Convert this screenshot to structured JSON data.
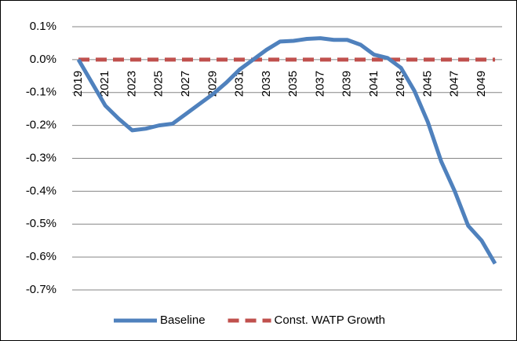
{
  "chart_data": {
    "type": "line",
    "categories": [
      "2019",
      null,
      "2021",
      null,
      "2023",
      null,
      "2025",
      null,
      "2027",
      null,
      "2029",
      null,
      "2031",
      null,
      "2033",
      null,
      "2035",
      null,
      "2037",
      null,
      "2039",
      null,
      "2041",
      null,
      "2043",
      null,
      "2045",
      null,
      "2047",
      null,
      "2049",
      null
    ],
    "series": [
      {
        "name": "Baseline",
        "color": "#4f81bd",
        "dash": false,
        "values": [
          0.0,
          -0.07,
          -0.14,
          -0.18,
          -0.215,
          -0.21,
          -0.2,
          -0.195,
          -0.165,
          -0.135,
          -0.105,
          -0.07,
          -0.03,
          0.0,
          0.03,
          0.055,
          0.057,
          0.063,
          0.065,
          0.06,
          0.06,
          0.045,
          0.015,
          0.005,
          -0.025,
          -0.095,
          -0.19,
          -0.31,
          -0.4,
          -0.505,
          -0.55,
          -0.62
        ]
      },
      {
        "name": "Const. WATP Growth",
        "color": "#c0504d",
        "dash": true,
        "values": [
          0,
          0,
          0,
          0,
          0,
          0,
          0,
          0,
          0,
          0,
          0,
          0,
          0,
          0,
          0,
          0,
          0,
          0,
          0,
          0,
          0,
          0,
          0,
          0,
          0,
          0,
          0,
          0,
          0,
          0,
          0,
          0
        ]
      }
    ],
    "ylim": [
      -0.7,
      0.1
    ],
    "yticks": [
      {
        "value": 0.1,
        "label": "0.1%"
      },
      {
        "value": 0.0,
        "label": "0.0%"
      },
      {
        "value": -0.1,
        "label": "-0.1%"
      },
      {
        "value": -0.2,
        "label": "-0.2%"
      },
      {
        "value": -0.3,
        "label": "-0.3%"
      },
      {
        "value": -0.4,
        "label": "-0.4%"
      },
      {
        "value": -0.5,
        "label": "-0.5%"
      },
      {
        "value": -0.6,
        "label": "-0.6%"
      },
      {
        "value": -0.7,
        "label": "-0.7%"
      }
    ],
    "grid": true,
    "legend": "bottom"
  }
}
